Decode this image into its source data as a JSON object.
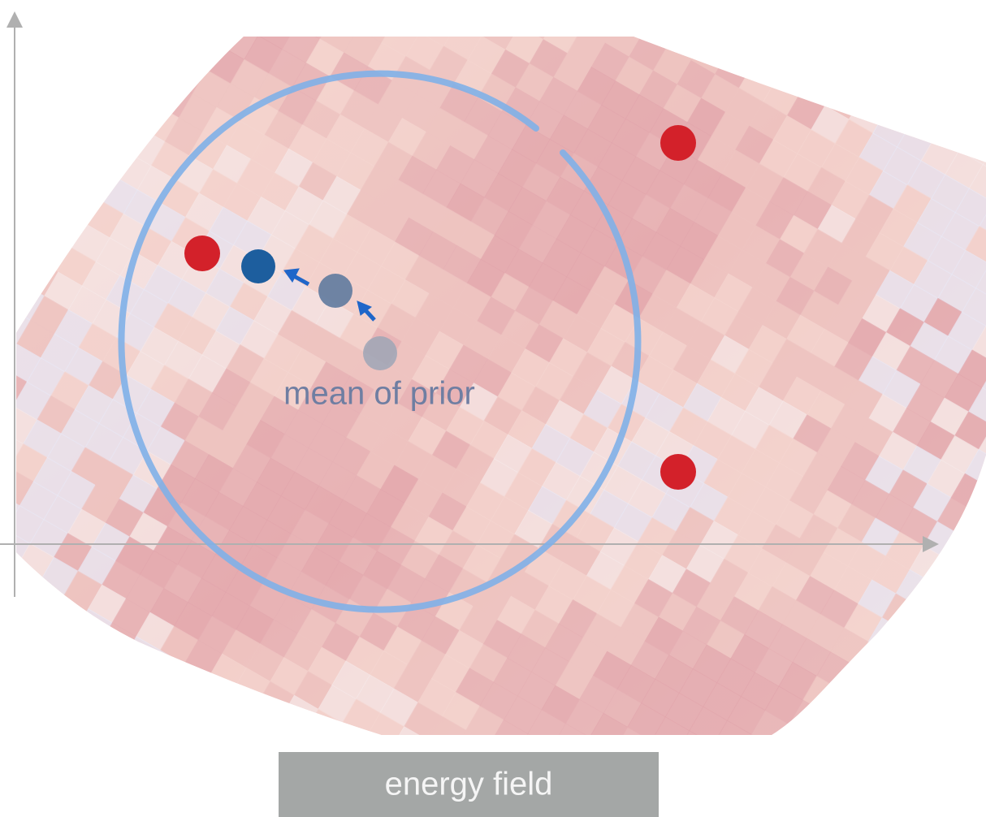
{
  "labels": {
    "prior": "mean of prior",
    "field": "energy field"
  }
}
